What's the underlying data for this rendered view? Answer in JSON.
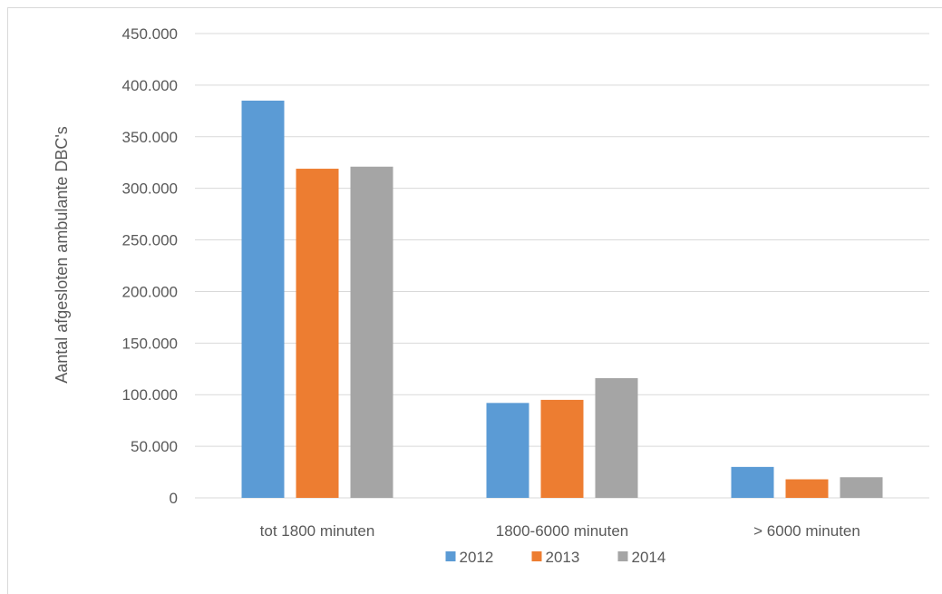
{
  "chart_data": {
    "type": "bar",
    "categories": [
      "tot 1800 minuten",
      "1800-6000 minuten",
      "> 6000 minuten"
    ],
    "series": [
      {
        "name": "2012",
        "color": "#5b9bd5",
        "values": [
          385000,
          92000,
          30000
        ]
      },
      {
        "name": "2013",
        "color": "#ed7d31",
        "values": [
          319000,
          95000,
          18000
        ]
      },
      {
        "name": "2014",
        "color": "#a5a5a5",
        "values": [
          321000,
          116000,
          20000
        ]
      }
    ],
    "title": "",
    "xlabel": "",
    "ylabel": "Aantal afgesloten ambulante DBC's",
    "ylim": [
      0,
      450000
    ],
    "yticks": [
      0,
      50000,
      100000,
      150000,
      200000,
      250000,
      300000,
      350000,
      400000,
      450000
    ],
    "ytick_labels": [
      "0",
      "50.000",
      "100.000",
      "150.000",
      "200.000",
      "250.000",
      "300.000",
      "350.000",
      "400.000",
      "450.000"
    ],
    "grid": true,
    "legend_position": "bottom",
    "gridline_color": "#d9d9d9"
  }
}
